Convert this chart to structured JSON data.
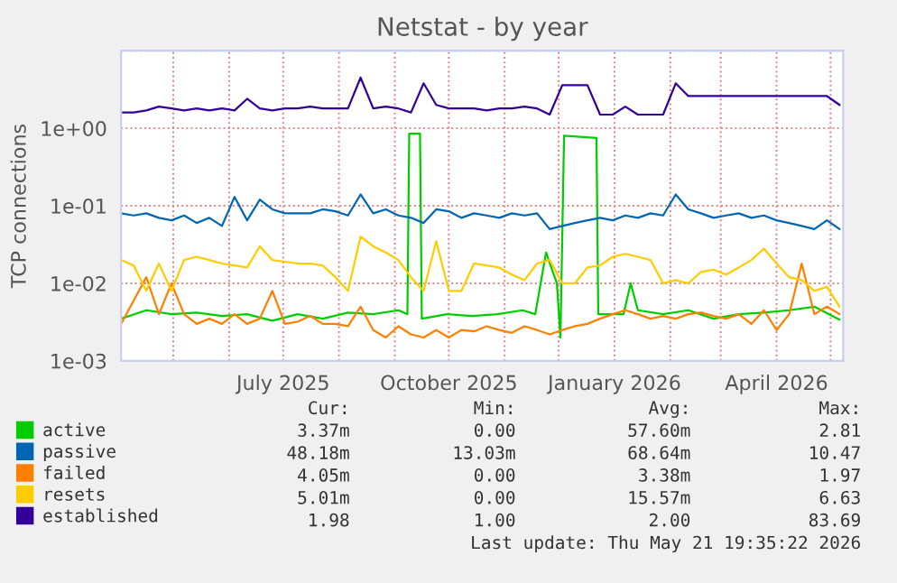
{
  "chart_data": {
    "type": "line",
    "title": "Netstat - by year",
    "ylabel": "TCP connections",
    "log": true,
    "grid": true,
    "legend": "bottom",
    "line_style": "solid",
    "marker": "none",
    "xlim": [
      "2025-04-02",
      "2026-05-08"
    ],
    "xticks": [
      {
        "value": "2025-05-01",
        "label": null
      },
      {
        "value": "2025-06-01",
        "label": null
      },
      {
        "value": "2025-07-01",
        "label": "July 2025"
      },
      {
        "value": "2025-08-01",
        "label": null
      },
      {
        "value": "2025-09-01",
        "label": null
      },
      {
        "value": "2025-10-01",
        "label": "October 2025"
      },
      {
        "value": "2025-11-01",
        "label": null
      },
      {
        "value": "2025-12-01",
        "label": null
      },
      {
        "value": "2026-01-01",
        "label": "January 2026"
      },
      {
        "value": "2026-02-01",
        "label": null
      },
      {
        "value": "2026-03-01",
        "label": null
      },
      {
        "value": "2026-04-01",
        "label": "April 2026"
      },
      {
        "value": "2026-05-01",
        "label": null
      }
    ],
    "ylim": [
      0.001,
      10
    ],
    "yticks": [
      {
        "value": 0.001,
        "label": "1e-03"
      },
      {
        "value": 0.01,
        "label": "1e-02"
      },
      {
        "value": 0.1,
        "label": "1e-01"
      },
      {
        "value": 1,
        "label": "1e+00"
      },
      {
        "value": 10,
        "label": null
      }
    ],
    "x": [
      "2025-04-02",
      "2025-04-09",
      "2025-04-16",
      "2025-04-23",
      "2025-04-30",
      "2025-05-07",
      "2025-05-14",
      "2025-05-21",
      "2025-05-28",
      "2025-06-04",
      "2025-06-11",
      "2025-06-18",
      "2025-06-25",
      "2025-07-02",
      "2025-07-09",
      "2025-07-16",
      "2025-07-23",
      "2025-07-30",
      "2025-08-06",
      "2025-08-13",
      "2025-08-20",
      "2025-08-27",
      "2025-09-03",
      "2025-09-10",
      "2025-09-17",
      "2025-09-24",
      "2025-10-01",
      "2025-10-08",
      "2025-10-15",
      "2025-10-22",
      "2025-10-29",
      "2025-11-05",
      "2025-11-12",
      "2025-11-19",
      "2025-11-26",
      "2025-12-03",
      "2025-12-10",
      "2025-12-17",
      "2025-12-24",
      "2025-12-31",
      "2026-01-07",
      "2026-01-14",
      "2026-01-21",
      "2026-01-28",
      "2026-02-04",
      "2026-02-11",
      "2026-02-18",
      "2026-02-25",
      "2026-03-04",
      "2026-03-11",
      "2026-03-18",
      "2026-03-25",
      "2026-04-01",
      "2026-04-08",
      "2026-04-15",
      "2026-04-22",
      "2026-04-29",
      "2026-05-06"
    ],
    "series": [
      {
        "name": "active",
        "color": "#00cc00",
        "x": [
          "2025-04-02",
          "2025-04-16",
          "2025-04-30",
          "2025-05-14",
          "2025-05-28",
          "2025-06-11",
          "2025-06-25",
          "2025-07-09",
          "2025-07-23",
          "2025-08-06",
          "2025-08-20",
          "2025-09-03",
          "2025-09-08",
          "2025-09-09",
          "2025-09-15",
          "2025-09-16",
          "2025-09-30",
          "2025-10-14",
          "2025-10-28",
          "2025-11-11",
          "2025-11-18",
          "2025-11-24",
          "2025-11-30",
          "2025-12-02",
          "2025-12-04",
          "2025-12-22",
          "2025-12-23",
          "2026-01-06",
          "2026-01-10",
          "2026-01-14",
          "2026-01-28",
          "2026-02-11",
          "2026-02-25",
          "2026-03-11",
          "2026-03-25",
          "2026-04-08",
          "2026-04-22",
          "2026-05-06"
        ],
        "values": [
          0.0035,
          0.0045,
          0.004,
          0.0042,
          0.0038,
          0.004,
          0.0033,
          0.004,
          0.0035,
          0.0042,
          0.004,
          0.0045,
          0.004,
          0.85,
          0.85,
          0.0035,
          0.004,
          0.0038,
          0.004,
          0.0045,
          0.004,
          0.025,
          0.01,
          0.002,
          0.8,
          0.75,
          0.004,
          0.004,
          0.01,
          0.0045,
          0.004,
          0.0045,
          0.0035,
          0.004,
          0.0042,
          0.0045,
          0.005,
          0.0034
        ]
      },
      {
        "name": "passive",
        "color": "#0066b3",
        "values": [
          0.08,
          0.075,
          0.08,
          0.07,
          0.065,
          0.075,
          0.06,
          0.07,
          0.055,
          0.13,
          0.065,
          0.12,
          0.09,
          0.08,
          0.08,
          0.08,
          0.09,
          0.085,
          0.075,
          0.14,
          0.08,
          0.09,
          0.075,
          0.07,
          0.06,
          0.09,
          0.085,
          0.07,
          0.08,
          0.075,
          0.07,
          0.08,
          0.075,
          0.08,
          0.05,
          0.055,
          0.06,
          0.065,
          0.07,
          0.065,
          0.075,
          0.07,
          0.08,
          0.075,
          0.14,
          0.09,
          0.08,
          0.07,
          0.075,
          0.08,
          0.07,
          0.075,
          0.065,
          0.06,
          0.055,
          0.05,
          0.065,
          0.05
        ]
      },
      {
        "name": "failed",
        "color": "#ff8000",
        "values": [
          0.003,
          0.006,
          0.012,
          0.004,
          0.01,
          0.004,
          0.003,
          0.0035,
          0.003,
          0.004,
          0.003,
          0.0035,
          0.008,
          0.003,
          0.0032,
          0.0038,
          0.003,
          0.003,
          0.0028,
          0.005,
          0.0025,
          0.002,
          0.0028,
          0.0022,
          0.002,
          0.0025,
          0.002,
          0.0025,
          0.0024,
          0.0028,
          0.0025,
          0.0023,
          0.0028,
          0.0025,
          0.0022,
          0.0025,
          0.0028,
          0.003,
          0.0035,
          0.004,
          0.0045,
          0.004,
          0.0035,
          0.0038,
          0.0035,
          0.004,
          0.0042,
          0.0038,
          0.0035,
          0.004,
          0.003,
          0.0045,
          0.0025,
          0.004,
          0.018,
          0.004,
          0.005,
          0.004
        ]
      },
      {
        "name": "resets",
        "color": "#ffcc00",
        "values": [
          0.02,
          0.017,
          0.008,
          0.018,
          0.008,
          0.02,
          0.022,
          0.02,
          0.018,
          0.017,
          0.016,
          0.03,
          0.02,
          0.019,
          0.018,
          0.018,
          0.017,
          0.012,
          0.008,
          0.04,
          0.03,
          0.025,
          0.02,
          0.012,
          0.008,
          0.035,
          0.008,
          0.008,
          0.018,
          0.017,
          0.016,
          0.013,
          0.011,
          0.018,
          0.02,
          0.01,
          0.01,
          0.016,
          0.017,
          0.022,
          0.024,
          0.022,
          0.02,
          0.01,
          0.011,
          0.01,
          0.014,
          0.015,
          0.013,
          0.016,
          0.02,
          0.028,
          0.018,
          0.012,
          0.011,
          0.008,
          0.009,
          0.005
        ]
      },
      {
        "name": "established",
        "color": "#330099",
        "values": [
          1.6,
          1.6,
          1.7,
          1.9,
          1.8,
          1.7,
          1.8,
          1.7,
          1.8,
          1.7,
          2.4,
          1.8,
          1.7,
          1.8,
          1.8,
          1.9,
          1.8,
          1.8,
          1.8,
          4.5,
          1.8,
          1.9,
          1.8,
          1.6,
          3.8,
          2.0,
          1.8,
          1.8,
          1.8,
          1.7,
          1.8,
          1.8,
          1.9,
          1.8,
          1.5,
          3.6,
          3.6,
          3.6,
          1.5,
          1.5,
          1.9,
          1.5,
          1.5,
          1.5,
          3.8,
          2.6,
          2.6,
          2.6,
          2.6,
          2.6,
          2.6,
          2.6,
          2.6,
          2.6,
          2.6,
          2.6,
          2.6,
          2.0
        ]
      }
    ],
    "annotations": [
      "Cur:",
      "Min:",
      "Avg:",
      "Max:",
      "3.37m",
      "0.00",
      "57.60m",
      "2.81",
      "48.18m",
      "13.03m",
      "68.64m",
      "10.47",
      "4.05m",
      "0.00",
      "3.38m",
      "1.97",
      "5.01m",
      "0.00",
      "15.57m",
      "6.63",
      "1.98",
      "1.00",
      "2.00",
      "83.69",
      "Last update: Thu May 21 19:35:22 2026"
    ]
  }
}
